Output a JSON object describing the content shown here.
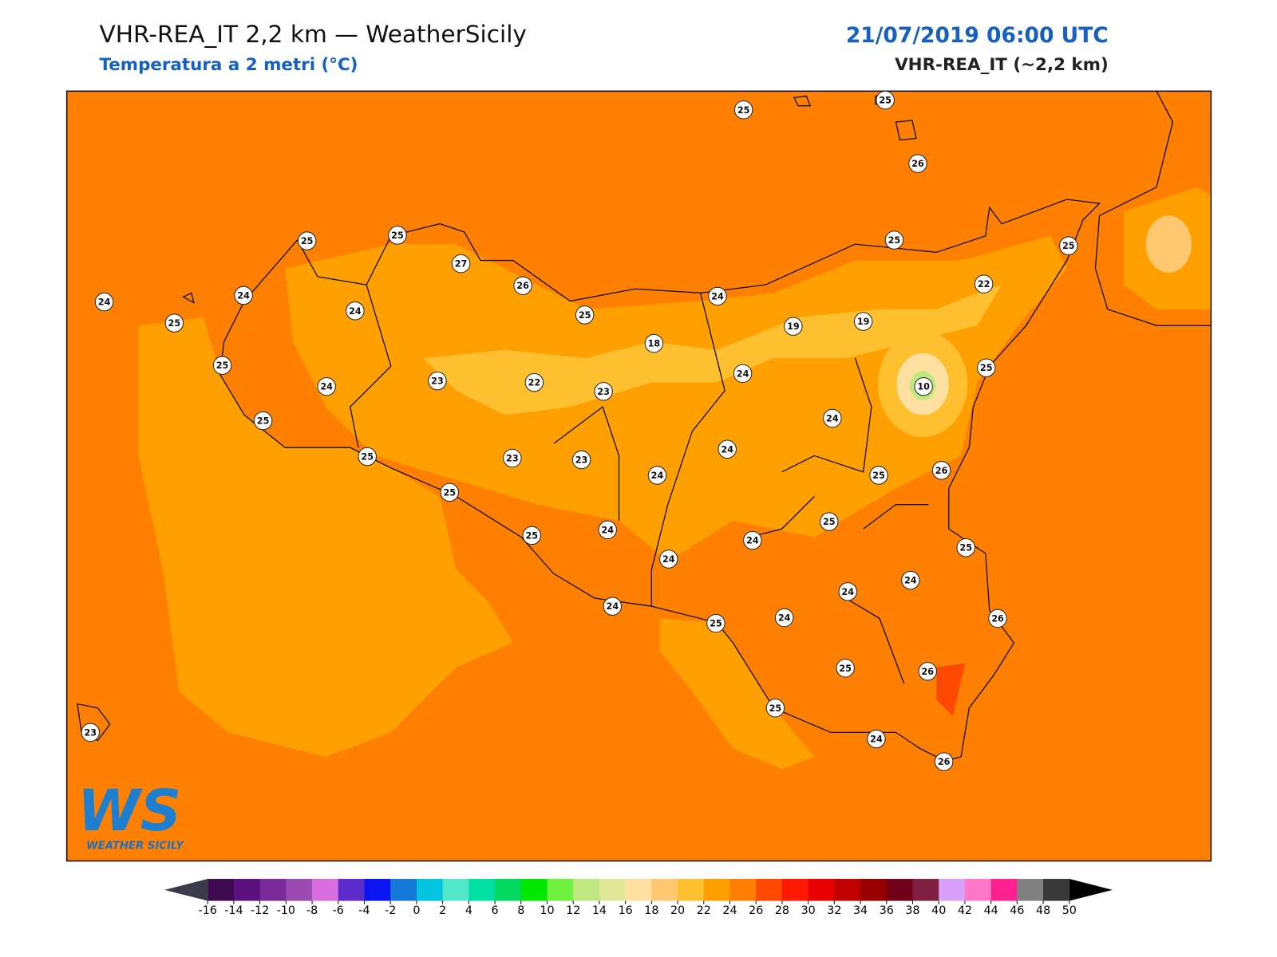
{
  "header": {
    "title": "VHR-REA_IT 2,2 km — WeatherSicily",
    "subtitle": "Temperatura a 2 metri (°C)",
    "datetime": "21/07/2019 06:00 UTC",
    "model": "VHR-REA_IT (~2,2 km)"
  },
  "logo": {
    "mark": "WS",
    "name": "WEATHER SICILY"
  },
  "stations": {
    "values": [
      25,
      25,
      26,
      25,
      25,
      27,
      26,
      25,
      25,
      24,
      24,
      25,
      24,
      25,
      24,
      22,
      19,
      19,
      18,
      25,
      24,
      23,
      22,
      23,
      24,
      10,
      25,
      25,
      24,
      25,
      23,
      23,
      24,
      24,
      25,
      26,
      25,
      25,
      25,
      24,
      24,
      25,
      24,
      24,
      24,
      24,
      25,
      24,
      26,
      25,
      26,
      25,
      24,
      26,
      23
    ]
  },
  "colorbar": {
    "ticks": [
      -16,
      -14,
      -12,
      -10,
      -8,
      -6,
      -4,
      -2,
      0,
      2,
      4,
      6,
      8,
      10,
      12,
      14,
      16,
      18,
      20,
      22,
      24,
      26,
      28,
      30,
      32,
      34,
      36,
      38,
      40,
      42,
      44,
      46,
      48,
      50
    ],
    "colors": [
      "#3d0a4f",
      "#5c1180",
      "#7a2a99",
      "#9a4ab0",
      "#d96ee0",
      "#5a2bc8",
      "#0a14f0",
      "#1478d8",
      "#00c4e0",
      "#50e8c8",
      "#00e0a0",
      "#00d860",
      "#00e800",
      "#70f040",
      "#c0e880",
      "#e0e898",
      "#ffe0a0",
      "#ffc870",
      "#ffc030",
      "#ffa000",
      "#ff8000",
      "#ff4800",
      "#ff1800",
      "#e80000",
      "#c00000",
      "#980000",
      "#700018",
      "#802040",
      "#d8a0f8",
      "#ff78c8",
      "#ff2090",
      "#808080",
      "#383838"
    ],
    "under_color": "#3a3a4a",
    "over_color": "#000000"
  }
}
